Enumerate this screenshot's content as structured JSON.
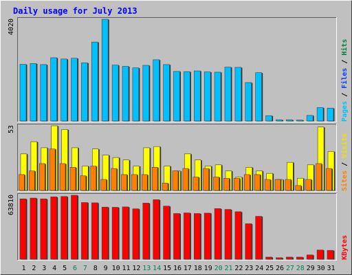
{
  "chart_data": [
    {
      "type": "bar",
      "title": "Daily usage for July 2013",
      "panel": "pages-files-hits",
      "right_label": [
        {
          "text": "Pages",
          "color": "#00C0FF"
        },
        {
          "text": "Files",
          "color": "#0040FF"
        },
        {
          "text": "Hits",
          "color": "#008040"
        }
      ],
      "ymax_label": "4020",
      "ylim": [
        0,
        4020
      ],
      "categories": [
        "1",
        "2",
        "3",
        "4",
        "5",
        "6",
        "7",
        "8",
        "9",
        "10",
        "11",
        "12",
        "13",
        "14",
        "15",
        "16",
        "17",
        "18",
        "19",
        "20",
        "21",
        "22",
        "23",
        "24",
        "25",
        "26",
        "27",
        "28",
        "29",
        "30",
        "31"
      ],
      "series": [
        {
          "name": "Pages",
          "color": "#00C0FF",
          "values": [
            2240,
            2270,
            2230,
            2500,
            2450,
            2480,
            2300,
            3120,
            4020,
            2210,
            2160,
            2100,
            2200,
            2420,
            2230,
            1960,
            1950,
            1980,
            1940,
            1930,
            2130,
            2120,
            1520,
            1910,
            210,
            50,
            50,
            40,
            220,
            530,
            510
          ]
        }
      ]
    },
    {
      "type": "bar",
      "panel": "sites-visits",
      "right_label": [
        {
          "text": "Sites",
          "color": "#FF8000"
        },
        {
          "text": "Visits",
          "color": "#F0E000"
        }
      ],
      "ymax_label": "53",
      "ylim": [
        0,
        53
      ],
      "categories": [
        "1",
        "2",
        "3",
        "4",
        "5",
        "6",
        "7",
        "8",
        "9",
        "10",
        "11",
        "12",
        "13",
        "14",
        "15",
        "16",
        "17",
        "18",
        "19",
        "20",
        "21",
        "22",
        "23",
        "24",
        "25",
        "26",
        "27",
        "28",
        "29",
        "30",
        "31"
      ],
      "series": [
        {
          "name": "Visits",
          "color": "#FFFF00",
          "values": [
            30,
            40,
            35,
            53,
            50,
            35,
            20,
            34,
            29,
            27,
            25,
            20,
            35,
            36,
            20,
            16,
            30,
            25,
            20,
            21,
            16,
            11,
            19,
            16,
            14,
            9,
            23,
            10,
            21,
            52,
            32
          ]
        },
        {
          "name": "Sites",
          "color": "#FF8000",
          "values": [
            13,
            16,
            22,
            34,
            22,
            19,
            12,
            20,
            9,
            18,
            13,
            13,
            13,
            19,
            6,
            16,
            18,
            11,
            18,
            11,
            10,
            10,
            13,
            13,
            9,
            9,
            9,
            4,
            9,
            22,
            18
          ]
        }
      ]
    },
    {
      "type": "bar",
      "panel": "kbytes",
      "right_label": [
        {
          "text": "KBytes",
          "color": "#FF0000"
        }
      ],
      "ymax_label": "63810",
      "ylim": [
        0,
        63810
      ],
      "categories": [
        "1",
        "2",
        "3",
        "4",
        "5",
        "6",
        "7",
        "8",
        "9",
        "10",
        "11",
        "12",
        "13",
        "14",
        "15",
        "16",
        "17",
        "18",
        "19",
        "20",
        "21",
        "22",
        "23",
        "24",
        "25",
        "26",
        "27",
        "28",
        "29",
        "30",
        "31"
      ],
      "series": [
        {
          "name": "KBytes",
          "color": "#FF0000",
          "values": [
            60200,
            61000,
            60200,
            62200,
            62600,
            63810,
            56600,
            56300,
            52000,
            51800,
            52200,
            50300,
            56000,
            59400,
            53000,
            45600,
            46200,
            45600,
            46000,
            50500,
            49700,
            47400,
            35400,
            42800,
            2100,
            1500,
            2100,
            2100,
            4300,
            9200,
            8800
          ]
        }
      ]
    }
  ],
  "x_axis": {
    "labels": [
      "1",
      "2",
      "3",
      "4",
      "5",
      "6",
      "7",
      "8",
      "9",
      "10",
      "11",
      "12",
      "13",
      "14",
      "15",
      "16",
      "17",
      "18",
      "19",
      "20",
      "21",
      "22",
      "23",
      "24",
      "25",
      "26",
      "27",
      "28",
      "29",
      "30",
      "31"
    ],
    "weekend_days": [
      "6",
      "7",
      "13",
      "14",
      "20",
      "21",
      "27",
      "28"
    ],
    "weekday_color": "#000000",
    "weekend_color": "#00805C"
  },
  "colors": {
    "background": "#C0C0C0",
    "title": "#0000FF",
    "plot_bg": "#C0C0C0",
    "border_light": "#FFFFFF",
    "border_dark": "#808080"
  }
}
